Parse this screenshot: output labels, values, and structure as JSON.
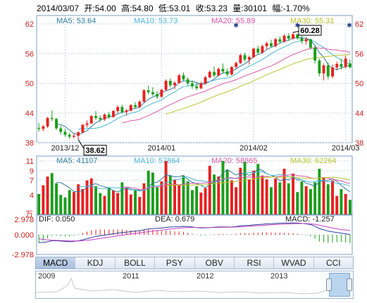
{
  "info": {
    "date": "2014/03/07",
    "open": "开:54.00",
    "high": "高:54.80",
    "low": "低:53.01",
    "close": "收:53.23",
    "volume": "量:30101",
    "change": "幅:-1.70%"
  },
  "colors": {
    "up": "#e8201f",
    "down": "#1a9e1a",
    "ma5": "#2f7a9c",
    "ma10": "#4ab6d6",
    "ma20": "#d858a8",
    "ma30": "#b8c22a",
    "dif": "#2a3f9a",
    "dea": "#c040c0"
  },
  "chart_data": [
    {
      "type": "candlestick",
      "legend": [
        "MA5: 53.64",
        "MA10: 53.73",
        "MA20: 55.89",
        "MA30: 55.31"
      ],
      "ylim": [
        38,
        62
      ],
      "yticks": [
        38,
        44,
        50,
        56,
        62
      ],
      "ytick_labels": [
        "38",
        "44",
        "50",
        "56",
        "62"
      ],
      "xticks": [
        {
          "label": "2013/12",
          "index": 6
        },
        {
          "label": "2014/01",
          "index": 28
        },
        {
          "label": "2014/02",
          "index": 49
        },
        {
          "label": "2014/03",
          "index": 70
        }
      ],
      "annotations": [
        {
          "label": "38.62",
          "index": 9,
          "value": 38.62
        },
        {
          "label": "60.28",
          "index": 58,
          "value": 60.28
        }
      ],
      "candles": [
        [
          41.0,
          42.0,
          40.2,
          40.8
        ],
        [
          40.8,
          41.6,
          40.3,
          41.3
        ],
        [
          41.3,
          43.2,
          41.0,
          43.0
        ],
        [
          43.0,
          44.5,
          42.4,
          42.8
        ],
        [
          42.8,
          43.0,
          40.6,
          40.9
        ],
        [
          40.9,
          41.4,
          39.6,
          40.2
        ],
        [
          40.2,
          40.8,
          39.2,
          39.6
        ],
        [
          39.6,
          40.0,
          38.8,
          39.2
        ],
        [
          39.2,
          39.8,
          38.9,
          39.4
        ],
        [
          39.4,
          40.3,
          38.62,
          40.1
        ],
        [
          40.1,
          41.8,
          39.9,
          41.6
        ],
        [
          41.6,
          42.5,
          41.1,
          41.9
        ],
        [
          41.9,
          43.6,
          41.8,
          43.4
        ],
        [
          43.4,
          44.4,
          42.6,
          43.0
        ],
        [
          43.0,
          43.5,
          42.2,
          42.7
        ],
        [
          42.7,
          43.9,
          42.4,
          43.7
        ],
        [
          43.7,
          44.2,
          42.8,
          43.2
        ],
        [
          43.2,
          44.6,
          43.0,
          44.4
        ],
        [
          44.4,
          45.6,
          44.0,
          45.2
        ],
        [
          45.2,
          45.7,
          43.9,
          44.2
        ],
        [
          44.2,
          44.8,
          43.5,
          44.5
        ],
        [
          44.5,
          45.8,
          44.3,
          45.6
        ],
        [
          45.6,
          46.2,
          44.9,
          45.2
        ],
        [
          45.2,
          46.6,
          45.0,
          46.3
        ],
        [
          46.3,
          48.8,
          46.1,
          48.6
        ],
        [
          48.6,
          49.6,
          47.8,
          48.2
        ],
        [
          48.2,
          49.2,
          47.4,
          47.8
        ],
        [
          47.8,
          48.4,
          46.8,
          47.3
        ],
        [
          47.3,
          48.9,
          47.1,
          48.7
        ],
        [
          48.7,
          50.8,
          48.4,
          50.5
        ],
        [
          50.5,
          51.0,
          49.2,
          49.6
        ],
        [
          49.6,
          50.4,
          48.8,
          50.1
        ],
        [
          50.1,
          51.9,
          49.9,
          51.6
        ],
        [
          51.6,
          52.2,
          50.4,
          50.8
        ],
        [
          50.8,
          51.2,
          49.6,
          50.0
        ],
        [
          50.0,
          50.6,
          48.9,
          49.4
        ],
        [
          49.4,
          50.1,
          48.6,
          49.0
        ],
        [
          49.0,
          50.3,
          48.8,
          50.0
        ],
        [
          50.0,
          51.5,
          49.7,
          51.2
        ],
        [
          51.2,
          52.6,
          51.0,
          52.3
        ],
        [
          52.3,
          53.4,
          51.2,
          51.6
        ],
        [
          51.6,
          53.2,
          51.4,
          52.9
        ],
        [
          52.9,
          54.0,
          52.0,
          52.4
        ],
        [
          52.4,
          53.0,
          51.4,
          51.8
        ],
        [
          51.8,
          53.5,
          51.6,
          53.3
        ],
        [
          53.3,
          54.4,
          53.0,
          54.1
        ],
        [
          54.1,
          56.0,
          53.9,
          55.7
        ],
        [
          55.7,
          56.2,
          54.4,
          54.8
        ],
        [
          54.8,
          55.6,
          53.8,
          55.3
        ],
        [
          55.3,
          57.2,
          55.1,
          57.0
        ],
        [
          57.0,
          57.6,
          55.8,
          56.2
        ],
        [
          56.2,
          57.8,
          56.0,
          57.5
        ],
        [
          57.5,
          58.4,
          56.9,
          58.1
        ],
        [
          58.1,
          58.8,
          57.2,
          57.5
        ],
        [
          57.5,
          59.2,
          57.3,
          58.9
        ],
        [
          58.9,
          59.5,
          58.0,
          58.4
        ],
        [
          58.4,
          59.9,
          58.2,
          59.6
        ],
        [
          59.6,
          60.1,
          58.6,
          59.0
        ],
        [
          59.0,
          60.28,
          58.8,
          59.9
        ],
        [
          59.9,
          60.0,
          58.8,
          59.1
        ],
        [
          59.1,
          59.6,
          58.0,
          58.5
        ],
        [
          58.5,
          59.3,
          57.8,
          58.9
        ],
        [
          58.9,
          59.0,
          56.8,
          57.2
        ],
        [
          57.2,
          57.6,
          54.0,
          54.6
        ],
        [
          54.6,
          55.0,
          51.4,
          52.0
        ],
        [
          52.0,
          54.0,
          50.6,
          53.6
        ],
        [
          53.6,
          54.2,
          50.8,
          51.4
        ],
        [
          51.4,
          53.8,
          51.0,
          53.2
        ],
        [
          53.2,
          54.4,
          52.6,
          53.9
        ],
        [
          53.9,
          55.0,
          52.8,
          53.3
        ],
        [
          53.3,
          55.6,
          53.0,
          55.0
        ],
        [
          54.0,
          54.8,
          53.01,
          53.23
        ]
      ]
    },
    {
      "type": "bar",
      "legend": [
        "MA5: 41107",
        "MA10: 57864",
        "MA20: 58865",
        "MA30: 62264"
      ],
      "unit": "万",
      "ylim": [
        0,
        12
      ],
      "yticks": [
        4,
        7,
        9,
        11
      ],
      "ytick_labels": [
        "4",
        "7",
        "9",
        "11"
      ],
      "values": [
        4.2,
        6.0,
        7.8,
        8.5,
        6.4,
        4.0,
        3.5,
        5.0,
        4.6,
        6.2,
        5.2,
        7.0,
        7.4,
        5.8,
        4.4,
        3.8,
        5.6,
        4.9,
        4.4,
        6.6,
        5.4,
        4.1,
        5.0,
        3.6,
        6.4,
        9.0,
        8.6,
        5.6,
        6.8,
        11.0,
        8.0,
        7.2,
        6.0,
        8.0,
        6.8,
        5.0,
        5.8,
        4.5,
        5.4,
        10.0,
        8.2,
        7.8,
        11.0,
        9.2,
        7.0,
        5.6,
        9.6,
        10.8,
        7.2,
        9.0,
        10.4,
        8.0,
        7.2,
        5.6,
        7.4,
        6.6,
        9.4,
        6.4,
        8.4,
        4.6,
        6.8,
        5.8,
        5.2,
        6.6,
        9.4,
        7.6,
        6.2,
        7.0,
        3.8,
        5.2,
        4.2,
        3.0
      ]
    },
    {
      "type": "macd",
      "legend": [
        "DIF: 0.050",
        "DEA: 0.679",
        "MACD: -1.257"
      ],
      "ylim": [
        -2.978,
        2.978
      ],
      "yticks": [
        2.978,
        0.0,
        -2.978
      ],
      "ytick_labels": [
        "2.978",
        "0.000",
        "-2.978"
      ],
      "dif": [
        -1.2,
        -1.15,
        -1.05,
        -0.9,
        -0.9,
        -0.95,
        -1.0,
        -1.05,
        -1.0,
        -0.9,
        -0.75,
        -0.6,
        -0.4,
        -0.25,
        -0.15,
        -0.05,
        0.05,
        0.15,
        0.25,
        0.35,
        0.4,
        0.48,
        0.55,
        0.62,
        0.75,
        0.88,
        0.95,
        0.98,
        1.02,
        1.12,
        1.18,
        1.2,
        1.25,
        1.28,
        1.25,
        1.18,
        1.1,
        1.05,
        1.05,
        1.1,
        1.15,
        1.18,
        1.2,
        1.18,
        1.2,
        1.25,
        1.35,
        1.4,
        1.42,
        1.5,
        1.55,
        1.6,
        1.66,
        1.68,
        1.72,
        1.75,
        1.78,
        1.78,
        1.8,
        1.78,
        1.72,
        1.65,
        1.55,
        1.3,
        0.95,
        0.75,
        0.55,
        0.45,
        0.35,
        0.25,
        0.15,
        0.05
      ],
      "dea": [
        -0.6,
        -0.7,
        -0.78,
        -0.82,
        -0.84,
        -0.86,
        -0.89,
        -0.92,
        -0.94,
        -0.93,
        -0.9,
        -0.84,
        -0.75,
        -0.65,
        -0.55,
        -0.45,
        -0.35,
        -0.25,
        -0.15,
        -0.05,
        0.04,
        0.13,
        0.21,
        0.29,
        0.38,
        0.48,
        0.57,
        0.65,
        0.72,
        0.8,
        0.88,
        0.94,
        1.0,
        1.06,
        1.1,
        1.12,
        1.12,
        1.11,
        1.1,
        1.1,
        1.11,
        1.12,
        1.14,
        1.15,
        1.16,
        1.18,
        1.22,
        1.26,
        1.3,
        1.34,
        1.38,
        1.42,
        1.47,
        1.51,
        1.55,
        1.59,
        1.62,
        1.65,
        1.68,
        1.7,
        1.7,
        1.69,
        1.66,
        1.59,
        1.46,
        1.32,
        1.17,
        1.03,
        0.9,
        0.79,
        0.73,
        0.679
      ]
    }
  ],
  "tabs": [
    "MACD",
    "KDJ",
    "BOLL",
    "PSY",
    "OBV",
    "RSI",
    "WVAD",
    "CCI"
  ],
  "navigator": {
    "years": [
      "2009",
      "2011",
      "2012",
      "2013"
    ]
  }
}
